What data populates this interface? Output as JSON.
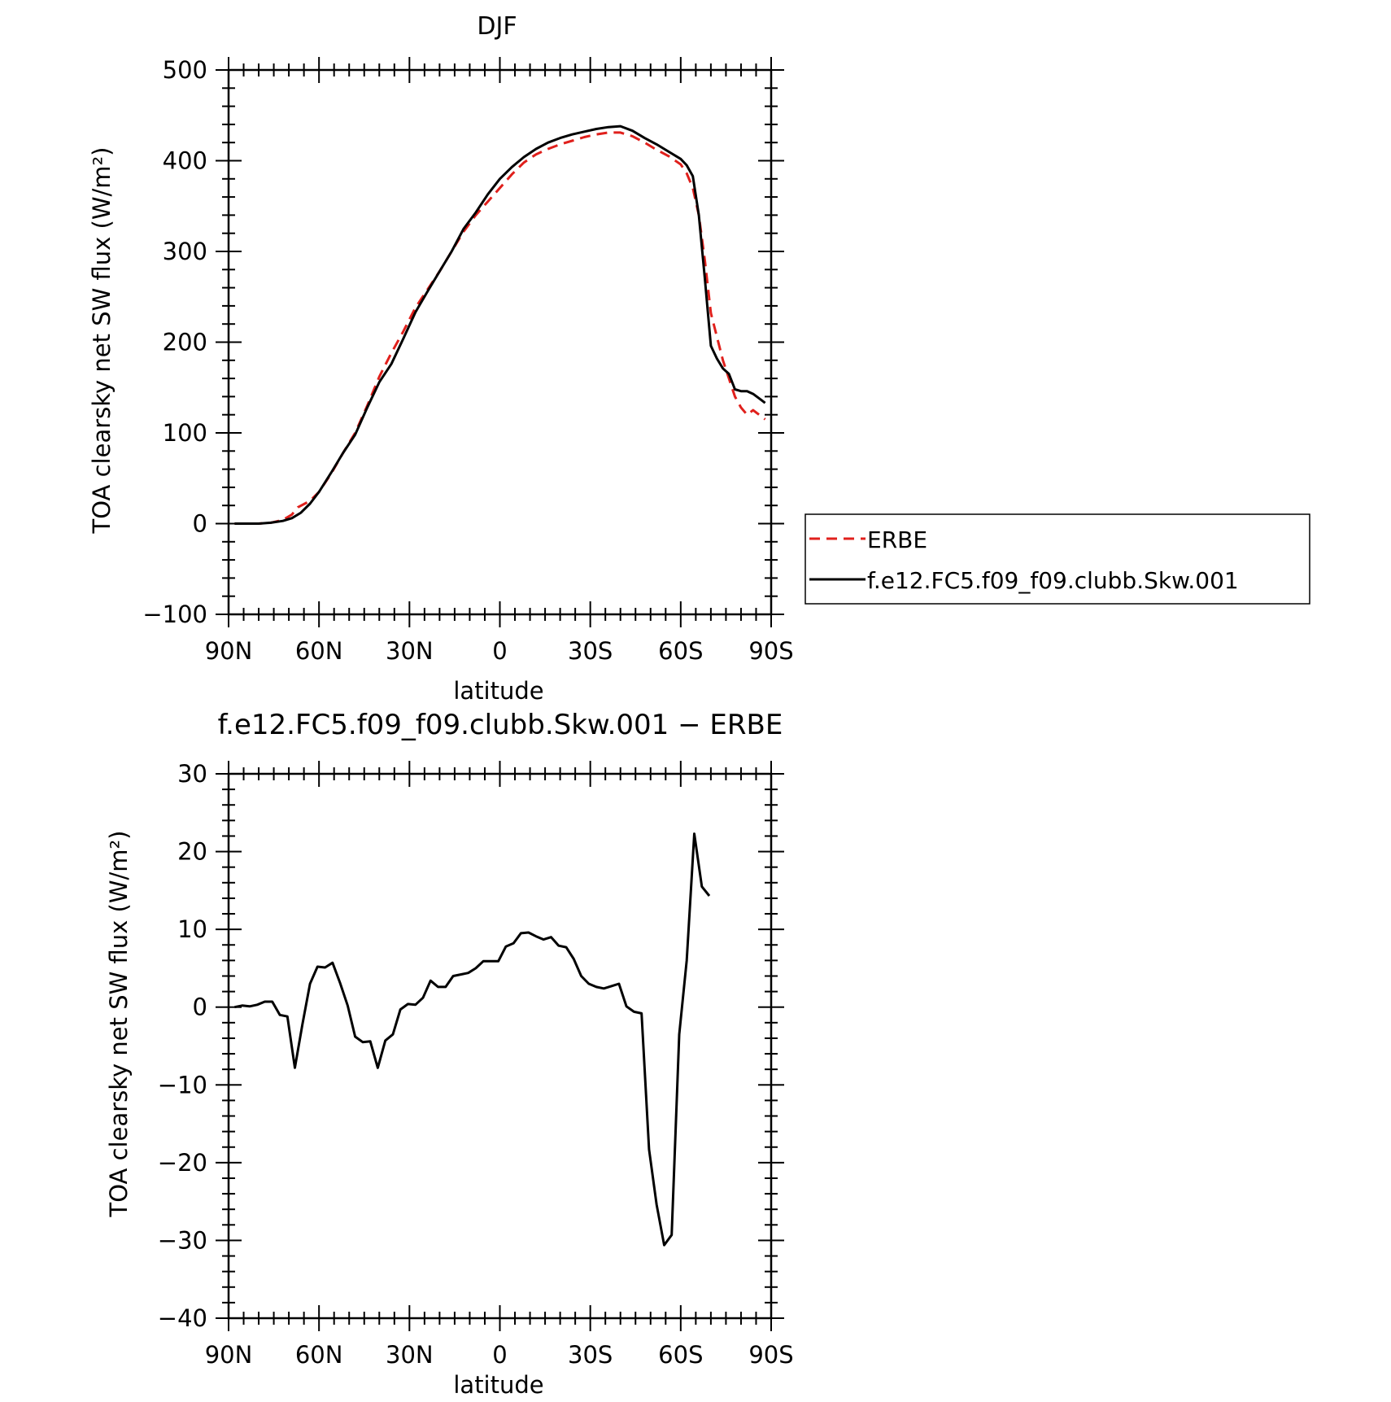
{
  "chart_data": [
    {
      "type": "line",
      "title": "DJF",
      "xlabel": "latitude",
      "ylabel": "TOA clearsky net SW flux (W/m²)",
      "xlim": [
        -90,
        90
      ],
      "ylim": [
        -100,
        500
      ],
      "x_ticks": [
        -90,
        -60,
        -30,
        0,
        30,
        60,
        90
      ],
      "x_tick_labels": [
        "90N",
        "60N",
        "30N",
        "0",
        "30S",
        "60S",
        "90S"
      ],
      "y_ticks": [
        -100,
        0,
        100,
        200,
        300,
        400,
        500
      ],
      "y_tick_labels": [
        "−100",
        "0",
        "100",
        "200",
        "300",
        "400",
        "500"
      ],
      "grid": false,
      "legend": "right",
      "series": [
        {
          "name": "ERBE",
          "color": "#e0201c",
          "dash": "dashed",
          "points": [
            [
              -88,
              0
            ],
            [
              -84,
              0
            ],
            [
              -80,
              0
            ],
            [
              -76,
              1
            ],
            [
              -72,
              4
            ],
            [
              -69,
              10
            ],
            [
              -67,
              18
            ],
            [
              -63,
              25
            ],
            [
              -60,
              35
            ],
            [
              -56,
              55
            ],
            [
              -52,
              78
            ],
            [
              -48,
              100
            ],
            [
              -44,
              130
            ],
            [
              -40,
              162
            ],
            [
              -36,
              188
            ],
            [
              -32,
              212
            ],
            [
              -28,
              238
            ],
            [
              -24,
              258
            ],
            [
              -20,
              278
            ],
            [
              -16,
              300
            ],
            [
              -12,
              322
            ],
            [
              -8,
              340
            ],
            [
              -4,
              355
            ],
            [
              0,
              370
            ],
            [
              4,
              385
            ],
            [
              8,
              398
            ],
            [
              12,
              407
            ],
            [
              16,
              413
            ],
            [
              20,
              418
            ],
            [
              24,
              422
            ],
            [
              28,
              426
            ],
            [
              32,
              429
            ],
            [
              36,
              431
            ],
            [
              40,
              431
            ],
            [
              44,
              427
            ],
            [
              48,
              420
            ],
            [
              52,
              412
            ],
            [
              56,
              405
            ],
            [
              60,
              396
            ],
            [
              62,
              386
            ],
            [
              64,
              370
            ],
            [
              66,
              340
            ],
            [
              68,
              290
            ],
            [
              70,
              232
            ],
            [
              72,
              206
            ],
            [
              74,
              180
            ],
            [
              76,
              160
            ],
            [
              78,
              140
            ],
            [
              80,
              128
            ],
            [
              82,
              120
            ],
            [
              84,
              125
            ],
            [
              86,
              120
            ],
            [
              88,
              115
            ]
          ]
        },
        {
          "name": "f.e12.FC5.f09_f09.clubb.Skw.001",
          "color": "#000000",
          "dash": "solid",
          "points": [
            [
              -88,
              0
            ],
            [
              -84,
              0
            ],
            [
              -80,
              0
            ],
            [
              -76,
              1
            ],
            [
              -72,
              3
            ],
            [
              -69,
              6
            ],
            [
              -66,
              12
            ],
            [
              -63,
              22
            ],
            [
              -60,
              35
            ],
            [
              -56,
              56
            ],
            [
              -52,
              78
            ],
            [
              -48,
              98
            ],
            [
              -44,
              128
            ],
            [
              -40,
              156
            ],
            [
              -36,
              176
            ],
            [
              -32,
              204
            ],
            [
              -28,
              233
            ],
            [
              -24,
              256
            ],
            [
              -20,
              278
            ],
            [
              -16,
              300
            ],
            [
              -12,
              325
            ],
            [
              -8,
              343
            ],
            [
              -4,
              363
            ],
            [
              0,
              380
            ],
            [
              4,
              393
            ],
            [
              8,
              404
            ],
            [
              12,
              413
            ],
            [
              16,
              420
            ],
            [
              20,
              425
            ],
            [
              24,
              429
            ],
            [
              28,
              432
            ],
            [
              32,
              435
            ],
            [
              36,
              437
            ],
            [
              40,
              438
            ],
            [
              44,
              433
            ],
            [
              48,
              425
            ],
            [
              52,
              418
            ],
            [
              56,
              410
            ],
            [
              60,
              402
            ],
            [
              62,
              395
            ],
            [
              64,
              383
            ],
            [
              66,
              340
            ],
            [
              68,
              270
            ],
            [
              70,
              196
            ],
            [
              72,
              182
            ],
            [
              74,
              171
            ],
            [
              76,
              165
            ],
            [
              78,
              148
            ],
            [
              80,
              146
            ],
            [
              82,
              146
            ],
            [
              84,
              143
            ],
            [
              86,
              138
            ],
            [
              88,
              133
            ]
          ]
        }
      ]
    },
    {
      "type": "line",
      "title": "f.e12.FC5.f09_f09.clubb.Skw.001 − ERBE",
      "xlabel": "latitude",
      "ylabel": "TOA clearsky net SW flux (W/m²)",
      "xlim": [
        -90,
        90
      ],
      "ylim": [
        -40,
        30
      ],
      "x_ticks": [
        -90,
        -60,
        -30,
        0,
        30,
        60,
        90
      ],
      "x_tick_labels": [
        "90N",
        "60N",
        "30N",
        "0",
        "30S",
        "60S",
        "90S"
      ],
      "y_ticks": [
        -40,
        -30,
        -20,
        -10,
        0,
        10,
        20,
        30
      ],
      "y_tick_labels": [
        "−40",
        "−30",
        "−20",
        "−10",
        "0",
        "10",
        "20",
        "30"
      ],
      "grid": false,
      "series": [
        {
          "color": "#000000",
          "dash": "solid",
          "points": [
            [
              -88,
              0
            ],
            [
              -85.5,
              0.2
            ],
            [
              -83,
              0.1
            ],
            [
              -80.5,
              0.3
            ],
            [
              -78,
              0.7
            ],
            [
              -75.5,
              0.7
            ],
            [
              -73,
              -1
            ],
            [
              -70.5,
              -1.2
            ],
            [
              -68,
              -7.8
            ],
            [
              -65.5,
              -2.2
            ],
            [
              -63,
              3
            ],
            [
              -60.5,
              5.2
            ],
            [
              -58,
              5.1
            ],
            [
              -55.5,
              5.7
            ],
            [
              -53,
              3.1
            ],
            [
              -50.5,
              0.2
            ],
            [
              -48,
              -3.8
            ],
            [
              -45.5,
              -4.5
            ],
            [
              -43,
              -4.4
            ],
            [
              -40.5,
              -7.8
            ],
            [
              -38,
              -4.3
            ],
            [
              -35.5,
              -3.5
            ],
            [
              -33,
              -0.3
            ],
            [
              -30.5,
              0.4
            ],
            [
              -28,
              0.3
            ],
            [
              -25.5,
              1.2
            ],
            [
              -23,
              3.4
            ],
            [
              -20.5,
              2.6
            ],
            [
              -18,
              2.6
            ],
            [
              -15.5,
              4
            ],
            [
              -13,
              4.2
            ],
            [
              -10.5,
              4.4
            ],
            [
              -8,
              5
            ],
            [
              -5.5,
              5.9
            ],
            [
              -3,
              5.9
            ],
            [
              -0.5,
              5.9
            ],
            [
              2,
              7.8
            ],
            [
              4.5,
              8.2
            ],
            [
              7,
              9.5
            ],
            [
              9.5,
              9.6
            ],
            [
              12,
              9.1
            ],
            [
              14.5,
              8.7
            ],
            [
              17,
              9
            ],
            [
              19.5,
              7.9
            ],
            [
              22,
              7.7
            ],
            [
              24.5,
              6.2
            ],
            [
              27,
              4
            ],
            [
              29.5,
              3
            ],
            [
              32,
              2.6
            ],
            [
              34.5,
              2.4
            ],
            [
              37,
              2.7
            ],
            [
              39.5,
              3
            ],
            [
              42,
              0.1
            ],
            [
              44.5,
              -0.6
            ],
            [
              47,
              -0.8
            ],
            [
              49.5,
              -18.3
            ],
            [
              52,
              -25.4
            ],
            [
              54.5,
              -30.6
            ],
            [
              57,
              -29.3
            ],
            [
              59.5,
              -3.5
            ],
            [
              62,
              6
            ],
            [
              64.5,
              22.3
            ],
            [
              67,
              15.5
            ],
            [
              69.5,
              14.3
            ]
          ]
        }
      ]
    }
  ]
}
